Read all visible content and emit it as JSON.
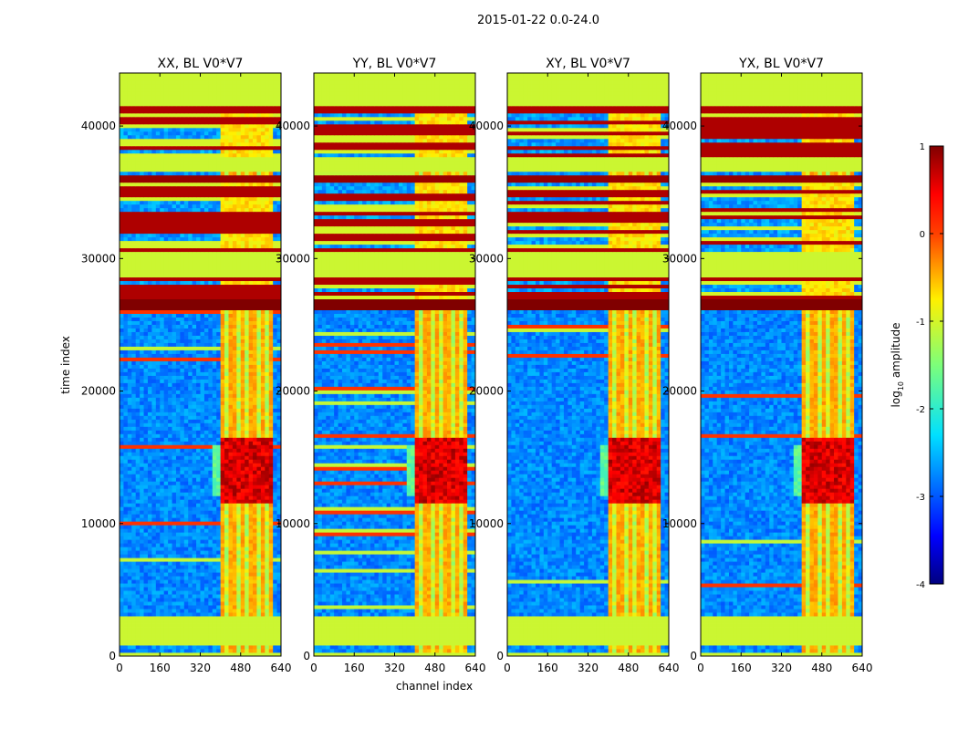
{
  "chart_data": {
    "type": "heatmap",
    "suptitle": "2015-01-22 0.0-24.0",
    "xlabel": "channel index",
    "ylabel": "time index",
    "xlim": [
      0,
      640
    ],
    "ylim": [
      0,
      44000
    ],
    "x_ticks": [
      0,
      160,
      320,
      480,
      640
    ],
    "y_ticks": [
      0,
      10000,
      20000,
      30000,
      40000
    ],
    "panels": [
      {
        "title": "XX, BL V0*V7"
      },
      {
        "title": "YY, BL V0*V7"
      },
      {
        "title": "XY, BL V0*V7"
      },
      {
        "title": "YX, BL V0*V7"
      }
    ],
    "colorbar": {
      "label_main": "log",
      "label_sub": "10",
      "label_rest": " amplitude",
      "range": [
        -4,
        1
      ],
      "ticks": [
        1,
        0,
        -1,
        -2,
        -3,
        -4
      ],
      "colormap": "jet"
    },
    "flagged_time_bands": [
      {
        "from": 0,
        "to": 300,
        "level": -1.05
      },
      {
        "from": 800,
        "to": 2900,
        "level": -1.05
      },
      {
        "from": 28500,
        "to": 30600,
        "level": -1.05
      },
      {
        "from": 36500,
        "to": 37600,
        "level": -1.05
      },
      {
        "from": 41500,
        "to": 44000,
        "level": -1.05
      }
    ],
    "saturated_time_bands": [
      {
        "from": 26200,
        "to": 27000,
        "level": 1
      },
      {
        "from": 28600,
        "to": 29200,
        "level": 1
      },
      {
        "from": 35700,
        "to": 36300,
        "level": 0.9
      },
      {
        "from": 41000,
        "to": 41400,
        "level": 0.8
      }
    ],
    "rfi_channel_band": [
      400,
      600
    ]
  }
}
